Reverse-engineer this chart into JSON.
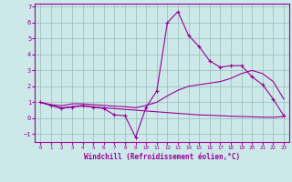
{
  "xlabel": "Windchill (Refroidissement éolien,°C)",
  "x_values": [
    0,
    1,
    2,
    3,
    4,
    5,
    6,
    7,
    8,
    9,
    10,
    11,
    12,
    13,
    14,
    15,
    16,
    17,
    18,
    19,
    20,
    21,
    22,
    23
  ],
  "line1": [
    1.0,
    0.8,
    0.6,
    0.7,
    0.8,
    0.7,
    0.6,
    0.2,
    0.15,
    -1.2,
    0.7,
    1.7,
    6.0,
    6.7,
    5.2,
    4.5,
    3.6,
    3.2,
    3.3,
    3.3,
    2.6,
    2.1,
    1.2,
    0.15
  ],
  "line2": [
    1.0,
    0.8,
    0.65,
    0.72,
    0.75,
    0.7,
    0.65,
    0.6,
    0.55,
    0.5,
    0.45,
    0.4,
    0.35,
    0.3,
    0.25,
    0.2,
    0.18,
    0.15,
    0.12,
    0.1,
    0.08,
    0.06,
    0.05,
    0.1
  ],
  "line3": [
    1.0,
    0.85,
    0.78,
    0.9,
    0.9,
    0.85,
    0.8,
    0.75,
    0.72,
    0.65,
    0.8,
    1.0,
    1.4,
    1.75,
    2.0,
    2.1,
    2.2,
    2.3,
    2.5,
    2.8,
    3.0,
    2.8,
    2.3,
    1.2
  ],
  "line_color": "#990099",
  "bg_color": "#cce8e8",
  "grid_color": "#99bbbb",
  "ylim": [
    -1.5,
    7.2
  ],
  "xlim": [
    -0.5,
    23.5
  ],
  "yticks": [
    -1,
    0,
    1,
    2,
    3,
    4,
    5,
    6,
    7
  ],
  "xticks": [
    0,
    1,
    2,
    3,
    4,
    5,
    6,
    7,
    8,
    9,
    10,
    11,
    12,
    13,
    14,
    15,
    16,
    17,
    18,
    19,
    20,
    21,
    22,
    23
  ]
}
